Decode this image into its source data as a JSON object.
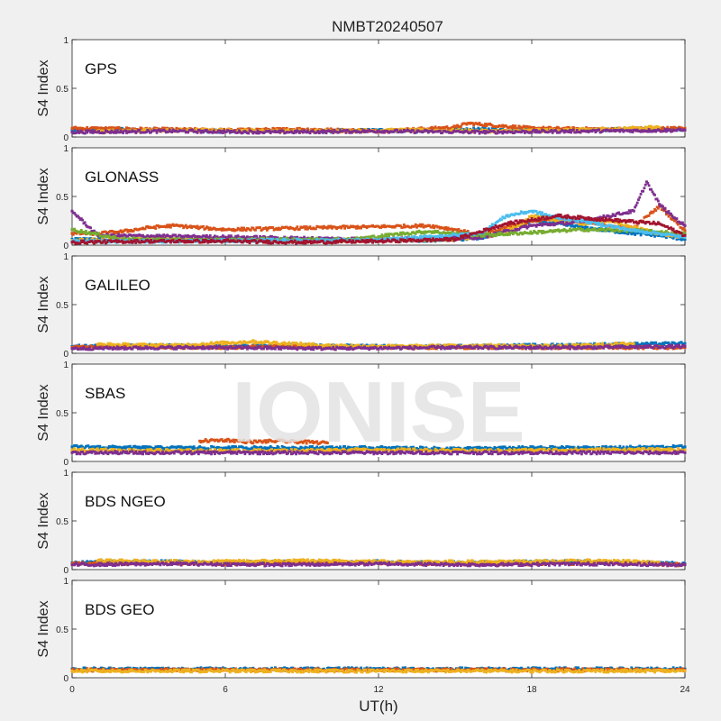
{
  "figure": {
    "title": "NMBT20240507",
    "xlabel": "UT(h)",
    "watermark": "IONISE",
    "x_ticks": [
      "0",
      "6",
      "12",
      "18",
      "24"
    ],
    "y_ticks": [
      "0",
      "0.5",
      "1"
    ]
  },
  "colors": {
    "series": [
      "#0072BD",
      "#D95319",
      "#EDB120",
      "#7E2F8E",
      "#77AC30",
      "#4DBEEE",
      "#A2142F"
    ],
    "panel_bg": "#ffffff",
    "figure_bg": "#f0f0f0",
    "watermark": "#e3e3e3"
  },
  "chart_data": [
    {
      "type": "scatter",
      "name": "GPS",
      "label": "GPS",
      "ylabel": "S4 Index",
      "xlim": [
        0,
        24
      ],
      "ylim": [
        0,
        1
      ],
      "series": [
        {
          "x": [
            0,
            2,
            4,
            6,
            8,
            10,
            12,
            14,
            16,
            18,
            20,
            22,
            24
          ],
          "y": [
            0.07,
            0.08,
            0.07,
            0.06,
            0.07,
            0.06,
            0.07,
            0.06,
            0.08,
            0.07,
            0.07,
            0.08,
            0.08
          ]
        },
        {
          "x": [
            0,
            3,
            6,
            9,
            12,
            15,
            15.5,
            18,
            21,
            24
          ],
          "y": [
            0.09,
            0.08,
            0.07,
            0.08,
            0.06,
            0.1,
            0.14,
            0.09,
            0.08,
            0.09
          ]
        },
        {
          "x": [
            1,
            5,
            9,
            13,
            17,
            21,
            23
          ],
          "y": [
            0.06,
            0.07,
            0.06,
            0.07,
            0.06,
            0.08,
            0.1
          ]
        },
        {
          "x": [
            0,
            4,
            8,
            12,
            16,
            20,
            24
          ],
          "y": [
            0.05,
            0.06,
            0.05,
            0.06,
            0.05,
            0.06,
            0.07
          ]
        }
      ]
    },
    {
      "type": "scatter",
      "name": "GLONASS",
      "label": "GLONASS",
      "ylabel": "S4 Index",
      "xlim": [
        0,
        24
      ],
      "ylim": [
        0,
        1
      ],
      "series": [
        {
          "x": [
            0,
            2,
            4,
            6,
            8,
            10,
            12,
            14,
            16,
            17,
            18,
            19,
            20,
            21,
            22,
            23,
            24
          ],
          "y": [
            0.06,
            0.05,
            0.05,
            0.05,
            0.05,
            0.05,
            0.05,
            0.05,
            0.07,
            0.15,
            0.25,
            0.22,
            0.18,
            0.15,
            0.12,
            0.1,
            0.06
          ]
        },
        {
          "x": [
            0,
            1,
            2,
            3,
            4,
            5,
            6,
            14,
            15,
            16,
            17,
            18,
            19,
            20,
            21,
            22,
            23,
            24
          ],
          "y": [
            0.12,
            0.12,
            0.14,
            0.18,
            0.2,
            0.18,
            0.16,
            0.2,
            0.16,
            0.1,
            0.18,
            0.25,
            0.28,
            0.24,
            0.2,
            0.18,
            0.4,
            0.15
          ]
        },
        {
          "x": [
            0,
            3,
            6,
            9,
            12,
            15,
            16.5,
            17.5,
            18,
            19,
            20,
            21,
            22,
            23,
            24
          ],
          "y": [
            0.05,
            0.06,
            0.05,
            0.05,
            0.05,
            0.06,
            0.1,
            0.2,
            0.3,
            0.25,
            0.22,
            0.25,
            0.18,
            0.12,
            0.08
          ]
        },
        {
          "x": [
            0,
            1,
            7,
            9,
            12,
            16,
            18,
            20,
            21,
            22,
            22.5,
            23,
            23.5,
            24
          ],
          "y": [
            0.35,
            0.1,
            0.08,
            0.07,
            0.06,
            0.08,
            0.2,
            0.24,
            0.3,
            0.35,
            0.65,
            0.42,
            0.3,
            0.2
          ]
        },
        {
          "x": [
            0,
            2,
            5,
            8,
            11,
            13,
            14,
            15,
            16,
            20,
            22,
            24
          ],
          "y": [
            0.16,
            0.06,
            0.05,
            0.06,
            0.06,
            0.12,
            0.14,
            0.12,
            0.1,
            0.16,
            0.15,
            0.12
          ]
        },
        {
          "x": [
            0,
            4,
            8,
            12,
            16,
            17,
            18,
            19,
            20,
            21,
            22,
            23,
            24
          ],
          "y": [
            0.04,
            0.04,
            0.05,
            0.05,
            0.12,
            0.3,
            0.35,
            0.28,
            0.25,
            0.2,
            0.15,
            0.12,
            0.08
          ]
        },
        {
          "x": [
            0,
            3,
            6,
            9,
            12,
            15,
            17,
            19,
            21,
            23,
            24
          ],
          "y": [
            0.03,
            0.04,
            0.04,
            0.03,
            0.04,
            0.06,
            0.22,
            0.3,
            0.26,
            0.22,
            0.1
          ]
        }
      ]
    },
    {
      "type": "scatter",
      "name": "GALILEO",
      "label": "GALILEO",
      "ylabel": "S4 Index",
      "xlim": [
        0,
        24
      ],
      "ylim": [
        0,
        1
      ],
      "series": [
        {
          "x": [
            0,
            3,
            6,
            9,
            12,
            15,
            18,
            21,
            24
          ],
          "y": [
            0.07,
            0.08,
            0.07,
            0.08,
            0.07,
            0.07,
            0.08,
            0.09,
            0.1
          ]
        },
        {
          "x": [
            0,
            2,
            4,
            6,
            8,
            10,
            12,
            14,
            16,
            18,
            20,
            22,
            24
          ],
          "y": [
            0.06,
            0.07,
            0.06,
            0.06,
            0.07,
            0.06,
            0.06,
            0.06,
            0.06,
            0.06,
            0.06,
            0.06,
            0.06
          ]
        },
        {
          "x": [
            1,
            4,
            7,
            10,
            13,
            16,
            19,
            22
          ],
          "y": [
            0.09,
            0.08,
            0.12,
            0.08,
            0.07,
            0.08,
            0.07,
            0.1
          ]
        },
        {
          "x": [
            0,
            5,
            10,
            15,
            20,
            24
          ],
          "y": [
            0.05,
            0.06,
            0.05,
            0.06,
            0.06,
            0.07
          ]
        }
      ]
    },
    {
      "type": "scatter",
      "name": "SBAS",
      "label": "SBAS",
      "ylabel": "S4 Index",
      "xlim": [
        0,
        24
      ],
      "ylim": [
        0,
        1
      ],
      "series": [
        {
          "x": [
            0,
            3,
            6,
            9,
            12,
            15,
            18,
            21,
            24
          ],
          "y": [
            0.15,
            0.14,
            0.14,
            0.14,
            0.14,
            0.13,
            0.14,
            0.14,
            0.15
          ]
        },
        {
          "x": [
            5,
            6,
            7,
            8,
            9,
            10
          ],
          "y": [
            0.21,
            0.22,
            0.2,
            0.21,
            0.2,
            0.19
          ]
        },
        {
          "x": [
            0,
            4,
            8,
            12,
            16,
            20,
            24
          ],
          "y": [
            0.12,
            0.11,
            0.11,
            0.12,
            0.11,
            0.12,
            0.12
          ]
        },
        {
          "x": [
            0,
            6,
            12,
            18,
            24
          ],
          "y": [
            0.09,
            0.09,
            0.09,
            0.09,
            0.09
          ]
        }
      ]
    },
    {
      "type": "scatter",
      "name": "BDS NGEO",
      "label": "BDS NGEO",
      "ylabel": "S4 Index",
      "xlim": [
        0,
        24
      ],
      "ylim": [
        0,
        1
      ],
      "series": [
        {
          "x": [
            0,
            2,
            4,
            6,
            8,
            10,
            12,
            14,
            16,
            18,
            20,
            22,
            24
          ],
          "y": [
            0.07,
            0.08,
            0.08,
            0.07,
            0.08,
            0.07,
            0.08,
            0.07,
            0.07,
            0.08,
            0.08,
            0.07,
            0.06
          ]
        },
        {
          "x": [
            0,
            3,
            6,
            9,
            12,
            15,
            18,
            21,
            24
          ],
          "y": [
            0.06,
            0.07,
            0.06,
            0.07,
            0.07,
            0.06,
            0.06,
            0.07,
            0.05
          ]
        },
        {
          "x": [
            1,
            5,
            9,
            13,
            17,
            21,
            23
          ],
          "y": [
            0.09,
            0.08,
            0.09,
            0.08,
            0.08,
            0.09,
            0.07
          ]
        },
        {
          "x": [
            0,
            4,
            8,
            12,
            16,
            20,
            24
          ],
          "y": [
            0.05,
            0.06,
            0.05,
            0.06,
            0.05,
            0.06,
            0.05
          ]
        }
      ]
    },
    {
      "type": "scatter",
      "name": "BDS GEO",
      "label": "BDS GEO",
      "ylabel": "S4 Index",
      "xlim": [
        0,
        24
      ],
      "ylim": [
        0,
        1
      ],
      "series": [
        {
          "x": [
            0,
            4,
            8,
            12,
            16,
            20,
            24
          ],
          "y": [
            0.09,
            0.09,
            0.09,
            0.09,
            0.09,
            0.09,
            0.09
          ]
        },
        {
          "x": [
            0,
            6,
            12,
            18,
            24
          ],
          "y": [
            0.08,
            0.08,
            0.08,
            0.08,
            0.08
          ]
        },
        {
          "x": [
            0,
            8,
            16,
            24
          ],
          "y": [
            0.07,
            0.07,
            0.07,
            0.07
          ]
        }
      ]
    }
  ]
}
